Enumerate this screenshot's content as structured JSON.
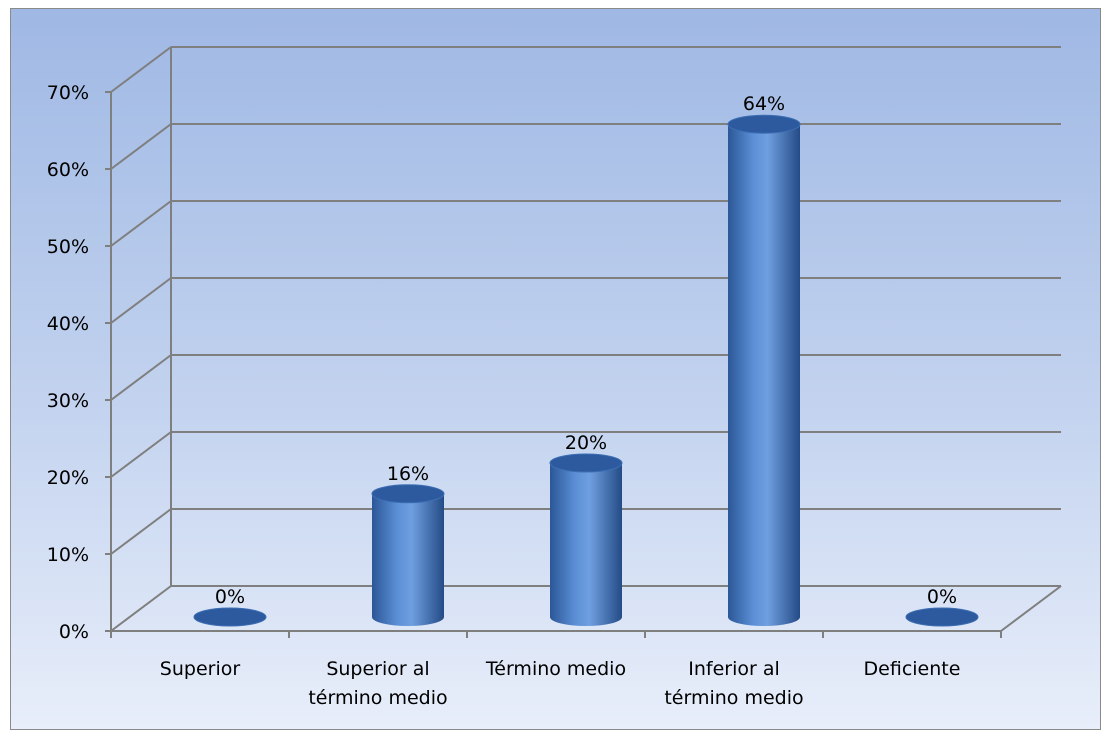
{
  "chart_data": {
    "type": "bar",
    "style": "3d-cylinder",
    "categories": [
      "Superior",
      "Superior al término medio",
      "Término medio",
      "Inferior al término medio",
      "Deficiente"
    ],
    "category_label_lines": [
      [
        "Superior"
      ],
      [
        "Superior al",
        "término medio"
      ],
      [
        "Término medio"
      ],
      [
        "Inferior al",
        "término medio"
      ],
      [
        "Deficiente"
      ]
    ],
    "values": [
      0,
      16,
      20,
      64,
      0
    ],
    "data_labels": [
      "0%",
      "16%",
      "20%",
      "64%",
      "0%"
    ],
    "yticks": [
      "0%",
      "10%",
      "20%",
      "30%",
      "40%",
      "50%",
      "60%",
      "70%"
    ],
    "ylim": [
      0,
      70
    ],
    "grid": true,
    "legend": false,
    "colors": {
      "bar": "#4a7cc4",
      "bar_dark": "#2d5a9e",
      "bar_light": "#7aa6e0",
      "grid": "#7f7f7f",
      "background_top": "#9fb8e4",
      "background_bottom": "#e8eefa"
    }
  }
}
